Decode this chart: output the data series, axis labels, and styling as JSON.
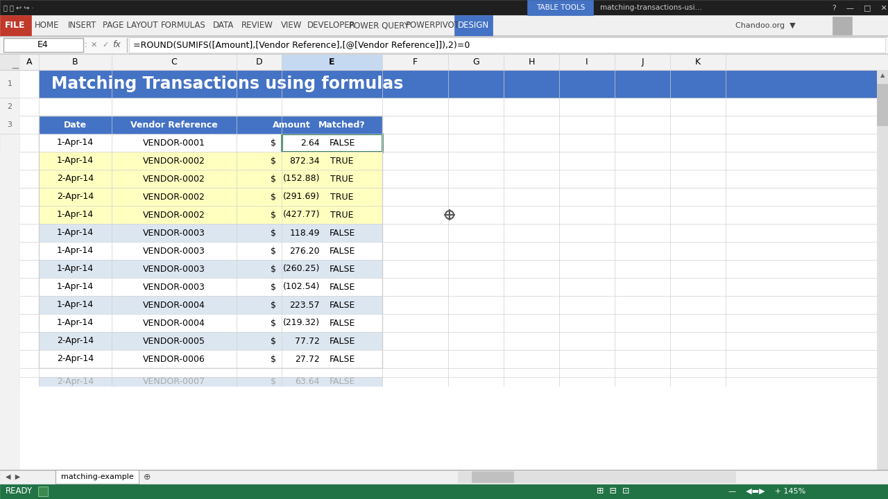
{
  "title": "Matching Transactions using formulas",
  "formula_bar_text": "=ROUND(SUMIFS([Amount],[Vendor Reference],[@[Vendor Reference]]),2)=0",
  "cell_ref": "E4",
  "col_letters": [
    "A",
    "B",
    "C",
    "D",
    "E",
    "F",
    "G",
    "H",
    "I",
    "J",
    "K"
  ],
  "headers": [
    "Date",
    "Vendor Reference",
    "Amount",
    "Matched?"
  ],
  "rows": [
    [
      "1-Apr-14",
      "VENDOR-0001",
      "$",
      "2.64",
      "FALSE",
      false
    ],
    [
      "1-Apr-14",
      "VENDOR-0002",
      "$",
      "872.34",
      "TRUE",
      true
    ],
    [
      "2-Apr-14",
      "VENDOR-0002",
      "$",
      "(152.88)",
      "TRUE",
      true
    ],
    [
      "2-Apr-14",
      "VENDOR-0002",
      "$",
      "(291.69)",
      "TRUE",
      true
    ],
    [
      "1-Apr-14",
      "VENDOR-0002",
      "$",
      "(427.77)",
      "TRUE",
      true
    ],
    [
      "1-Apr-14",
      "VENDOR-0003",
      "$",
      "118.49",
      "FALSE",
      false
    ],
    [
      "1-Apr-14",
      "VENDOR-0003",
      "$",
      "276.20",
      "FALSE",
      false
    ],
    [
      "1-Apr-14",
      "VENDOR-0003",
      "$",
      "(260.25)",
      "FALSE",
      false
    ],
    [
      "1-Apr-14",
      "VENDOR-0003",
      "$",
      "(102.54)",
      "FALSE",
      false
    ],
    [
      "1-Apr-14",
      "VENDOR-0004",
      "$",
      "223.57",
      "FALSE",
      false
    ],
    [
      "1-Apr-14",
      "VENDOR-0004",
      "$",
      "(219.32)",
      "FALSE",
      false
    ],
    [
      "2-Apr-14",
      "VENDOR-0005",
      "$",
      "77.72",
      "FALSE",
      false
    ],
    [
      "2-Apr-14",
      "VENDOR-0006",
      "$",
      "27.72",
      "FALSE",
      false
    ]
  ],
  "row17_partial": [
    "2-Apr-14",
    "VENDOR-0007",
    "$",
    "63.64",
    "FALSE",
    false
  ],
  "tab_name": "matching-example",
  "ribbon_tabs": [
    "HOME",
    "INSERT",
    "PAGE LAYOUT",
    "FORMULAS",
    "DATA",
    "REVIEW",
    "VIEW",
    "DEVELOPER",
    "POWER QUERY",
    "POWERPIVOT",
    "DESIGN"
  ],
  "colors": {
    "titlebar_bg": "#1F1F1F",
    "titlebar_text": "#CCCCCC",
    "table_tools_bg": "#4472C4",
    "ribbon_bg": "#F0F0F0",
    "ribbon_bottom_border": "#D0D0D0",
    "file_bg": "#C0392B",
    "file_text": "#FFFFFF",
    "tab_text": "#444444",
    "design_tab_bg": "#4472C4",
    "design_tab_text": "#FFFFFF",
    "chandoo_text": "#444444",
    "quick_access_bg": "#F0F0F0",
    "formula_bar_bg": "#F8F8F8",
    "formula_bar_border": "#CCCCCC",
    "cellref_box_bg": "#FFFFFF",
    "formula_box_bg": "#FFFFFF",
    "sheet_bg": "#FFFFFF",
    "col_header_bg": "#F2F2F2",
    "col_header_selected_bg": "#C5D9F1",
    "col_header_text": "#000000",
    "row_num_bg": "#F2F2F2",
    "row_num_selected_bg": "#BDD7EE",
    "row_num_text": "#666666",
    "grid_line": "#D0D0D0",
    "excel_title_bg": "#4472C4",
    "excel_title_text": "#FFFFFF",
    "table_header_bg": "#4472C4",
    "table_header_text": "#FFFFFF",
    "row_true_bg": "#FFFFC0",
    "row_false_odd_bg": "#FFFFFF",
    "row_false_even_bg": "#DCE6F1",
    "active_cell_border": "#217346",
    "status_bar_bg": "#217346",
    "status_bar_text": "#FFFFFF",
    "tab_bar_bg": "#F0F0F0",
    "sheet_tab_bg": "#FFFFFF",
    "sheet_tab_border": "#AAAAAA",
    "scrollbar_bg": "#E0E0E0",
    "scrollbar_thumb": "#C0C0C0"
  }
}
